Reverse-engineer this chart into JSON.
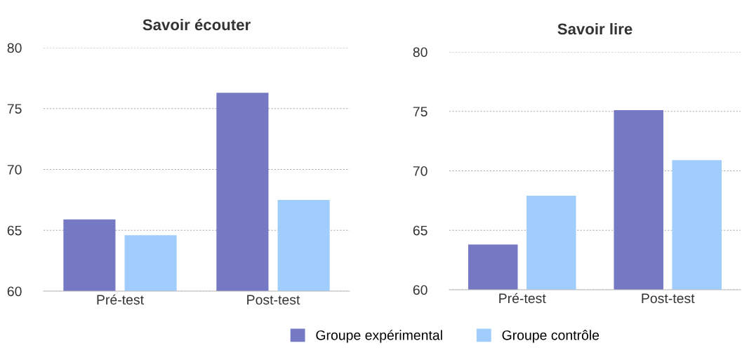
{
  "chart_data": [
    {
      "type": "bar",
      "title": "Savoir écouter",
      "categories": [
        "Pré-test",
        "Post-test"
      ],
      "series": [
        {
          "name": "Groupe expérimental",
          "color": "#7579c4",
          "values": [
            65.9,
            76.3
          ]
        },
        {
          "name": "Groupe contrôle",
          "color": "#a0cdfb",
          "values": [
            64.6,
            67.5
          ]
        }
      ],
      "ylim": [
        60,
        80
      ],
      "yticks": [
        60,
        65,
        70,
        75,
        80
      ],
      "grid": "y",
      "legend": "bottom"
    },
    {
      "type": "bar",
      "title": "Savoir lire",
      "categories": [
        "Pré-test",
        "Post-test"
      ],
      "series": [
        {
          "color": "#7579c4",
          "values": [
            63.8,
            75.1
          ]
        },
        {
          "color": "#a0cdfb",
          "values": [
            67.9,
            70.9
          ]
        }
      ],
      "ylim": [
        60,
        80
      ],
      "yticks": [
        60,
        65,
        70,
        75,
        80
      ],
      "grid": "y"
    }
  ]
}
